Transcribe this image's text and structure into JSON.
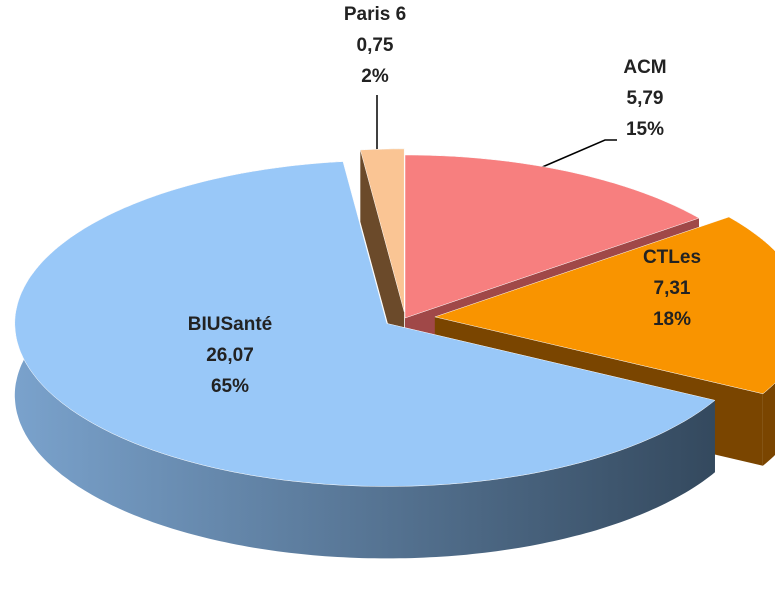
{
  "chart_data": {
    "type": "pie3d",
    "categories": [
      "ACM",
      "CTLes",
      "BIUSanté",
      "Paris 6"
    ],
    "values": [
      5.79,
      7.31,
      26.07,
      0.75
    ],
    "value_labels": [
      "5,79",
      "7,31",
      "26,07",
      "0,75"
    ],
    "percents": [
      15,
      18,
      65,
      2
    ],
    "percent_labels": [
      "15%",
      "18%",
      "65%",
      "2%"
    ],
    "colors": [
      "#f77f7f",
      "#f99400",
      "#99c8f8",
      "#fac594"
    ]
  }
}
